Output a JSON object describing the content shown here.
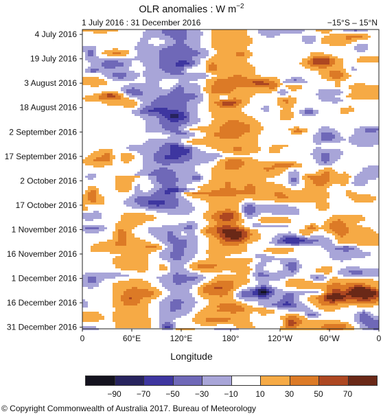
{
  "header": {
    "title": "OLR anomalies : W m",
    "title_superscript": "−2",
    "date_range": "1 July 2016 : 31 December 2016",
    "latitude_band": "−15°S – 15°N"
  },
  "chart_data": {
    "type": "heatmap",
    "title": "OLR anomalies : W m−2",
    "subtitle_left": "1 July 2016 : 31 December 2016",
    "subtitle_right": "−15°S – 15°N",
    "xlabel": "Longitude",
    "ylabel": "",
    "x_ticks": [
      "0",
      "60°E",
      "120°E",
      "180°",
      "120°W",
      "60°W",
      "0"
    ],
    "x_tick_values": [
      0,
      60,
      120,
      180,
      240,
      300,
      360
    ],
    "xlim": [
      0,
      360
    ],
    "y_ticks": [
      "4 July 2016",
      "19 July 2016",
      "3 August 2016",
      "18 August 2016",
      "2 September 2016",
      "17 September 2016",
      "2 October 2016",
      "17 October 2016",
      "1 November 2016",
      "16 November 2016",
      "1 December 2016",
      "16 December 2016",
      "31 December 2016"
    ],
    "y_tick_days": [
      3,
      18,
      33,
      48,
      63,
      78,
      93,
      108,
      123,
      138,
      153,
      168,
      183
    ],
    "ylim_days": [
      0,
      184
    ],
    "y_reversed": true,
    "colorbar": {
      "boundaries": [
        -110,
        -90,
        -70,
        -50,
        -30,
        -10,
        10,
        30,
        50,
        70,
        90
      ],
      "tick_labels": [
        "−90",
        "−70",
        "−50",
        "−30",
        "−10",
        "10",
        "30",
        "50",
        "70"
      ],
      "colors": [
        "#14131f",
        "#27235e",
        "#3e36a0",
        "#6f68b8",
        "#a8a5d8",
        "#ffffff",
        "#f6aa45",
        "#dc7a26",
        "#ad4721",
        "#6a2817"
      ]
    },
    "features": [
      {
        "name": "Indian Ocean / Maritime Continent negative band",
        "lon_range": [
          80,
          140
        ],
        "days": [
          0,
          184
        ],
        "sign": "negative"
      },
      {
        "name": "Central Pacific positive band",
        "lon_range": [
          150,
          210
        ],
        "days": [
          0,
          184
        ],
        "sign": "positive"
      },
      {
        "name": "African / Indian Ocean positive anomalies",
        "lon_range": [
          40,
          100
        ],
        "days": [
          90,
          184
        ],
        "sign": "positive"
      }
    ]
  },
  "footer": {
    "copyright": "© Copyright Commonwealth of Australia 2017. Bureau of Meteorology"
  }
}
